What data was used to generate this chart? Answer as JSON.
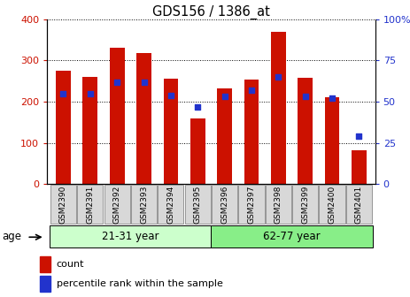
{
  "title": "GDS156 / 1386_at",
  "samples": [
    "GSM2390",
    "GSM2391",
    "GSM2392",
    "GSM2393",
    "GSM2394",
    "GSM2395",
    "GSM2396",
    "GSM2397",
    "GSM2398",
    "GSM2399",
    "GSM2400",
    "GSM2401"
  ],
  "counts": [
    275,
    260,
    330,
    318,
    255,
    160,
    233,
    254,
    370,
    258,
    210,
    82
  ],
  "percentiles": [
    55,
    55,
    62,
    62,
    54,
    47,
    53,
    57,
    65,
    53,
    52,
    29
  ],
  "groups": [
    {
      "label": "21-31 year",
      "start": 0,
      "end": 6
    },
    {
      "label": "62-77 year",
      "start": 6,
      "end": 12
    }
  ],
  "group_color_light": "#ccffcc",
  "group_color_dark": "#88ee88",
  "ylim_left": [
    0,
    400
  ],
  "ylim_right": [
    0,
    100
  ],
  "yticks_left": [
    0,
    100,
    200,
    300,
    400
  ],
  "yticks_right": [
    0,
    25,
    50,
    75,
    100
  ],
  "bar_color": "#cc1100",
  "dot_color": "#2233cc",
  "bar_width": 0.55,
  "left_tick_color": "#cc1100",
  "right_tick_color": "#2233cc",
  "background_color": "#ffffff",
  "legend_items": [
    "count",
    "percentile rank within the sample"
  ],
  "age_label": "age"
}
